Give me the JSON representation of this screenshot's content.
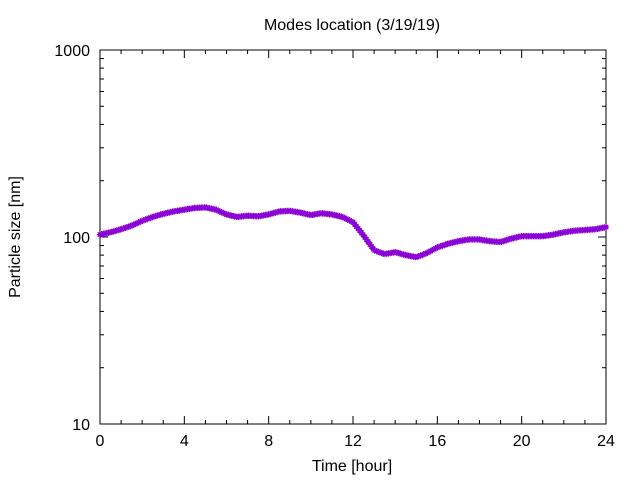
{
  "chart_data": {
    "type": "line",
    "title": "Modes location (3/19/19)",
    "xlabel": "Time [hour]",
    "ylabel": "Particle size [nm]",
    "xlim": [
      0,
      24
    ],
    "ylim": [
      10,
      1000
    ],
    "yscale": "log",
    "grid": false,
    "x_ticks": [
      0,
      4,
      8,
      12,
      16,
      20,
      24
    ],
    "x_tick_labels": [
      "0",
      "4",
      "8",
      "12",
      "16",
      "20",
      "24"
    ],
    "y_ticks": [
      10,
      100,
      1000
    ],
    "y_tick_labels": [
      "10",
      "100",
      "1000"
    ],
    "series": [
      {
        "color": "#8b00d4",
        "marker": "star",
        "x": [
          0,
          0.5,
          1,
          1.5,
          2,
          2.5,
          3,
          3.5,
          4,
          4.5,
          5,
          5.5,
          6,
          6.5,
          7,
          7.5,
          8,
          8.5,
          9,
          9.5,
          10,
          10.5,
          11,
          11.5,
          12,
          12.5,
          13,
          13.5,
          14,
          14.5,
          15,
          15.5,
          16,
          16.5,
          17,
          17.5,
          18,
          18.5,
          19,
          19.5,
          20,
          20.5,
          21,
          21.5,
          22,
          22.5,
          23,
          23.5,
          24
        ],
        "values": [
          103,
          106,
          110,
          115,
          122,
          128,
          133,
          137,
          140,
          143,
          144,
          140,
          132,
          128,
          130,
          129,
          132,
          137,
          138,
          135,
          131,
          134,
          132,
          128,
          120,
          102,
          85,
          81,
          83,
          80,
          78,
          82,
          88,
          92,
          95,
          97,
          97,
          95,
          94,
          98,
          101,
          101,
          101,
          103,
          106,
          108,
          109,
          110,
          113
        ]
      }
    ]
  }
}
